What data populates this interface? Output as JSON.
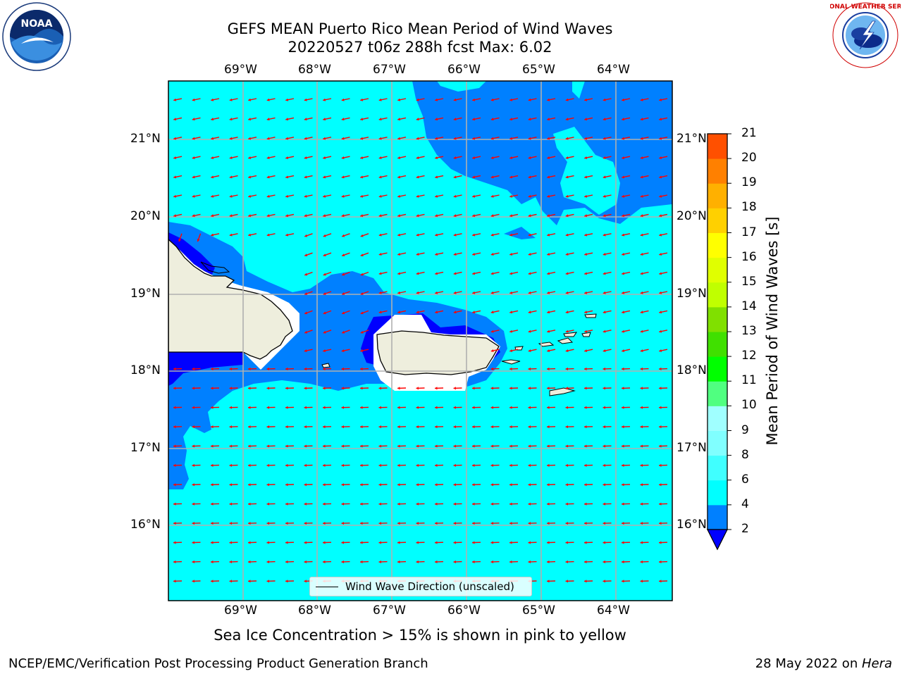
{
  "header": {
    "title_line1": "GEFS MEAN Puerto Rico Mean Period of Wind Waves",
    "title_line2": "20220527 t06z 288h fcst   Max: 6.02"
  },
  "logos": {
    "left_icon": "noaa-logo-icon",
    "left_text": "NOAA",
    "right_icon": "nws-logo-icon",
    "right_text": "NATIONAL WEATHER SERVICE"
  },
  "map": {
    "lon_labels": [
      "69°W",
      "68°W",
      "67°W",
      "66°W",
      "65°W",
      "64°W"
    ],
    "lat_labels": [
      "21°N",
      "20°N",
      "19°N",
      "18°N",
      "17°N",
      "16°N"
    ],
    "legend_label": "Wind Wave Direction (unscaled)",
    "colors": {
      "period_2_4": "#0080ff",
      "period_4_6": "#00ffff",
      "below_2": "#0000ff",
      "land": "#eeeedd",
      "arrow": "#ff0000",
      "grid": "#b0b0b0"
    }
  },
  "colorbar": {
    "label": "Mean Period of Wind Waves [s]",
    "ticks": [
      "2",
      "4",
      "6",
      "8",
      "9",
      "10",
      "11",
      "12",
      "13",
      "14",
      "15",
      "16",
      "17",
      "18",
      "19",
      "20",
      "21"
    ],
    "colors": [
      "#0080ff",
      "#00ffff",
      "#40ffff",
      "#80ffff",
      "#a0ffff",
      "#50ff80",
      "#00ff00",
      "#40e000",
      "#80e000",
      "#c0ff00",
      "#e0ff00",
      "#ffff00",
      "#ffd000",
      "#ffb000",
      "#ff8000",
      "#ff5000",
      "#ff2000",
      "#ff0000"
    ],
    "extend_color": "#0000ff"
  },
  "notes": {
    "sea_ice": "Sea Ice Concentration > 15% is shown in pink to yellow"
  },
  "footer": {
    "left": "NCEP/EMC/Verification Post Processing Product Generation Branch",
    "right_date": "28 May 2022 on ",
    "right_host": "Hera"
  }
}
